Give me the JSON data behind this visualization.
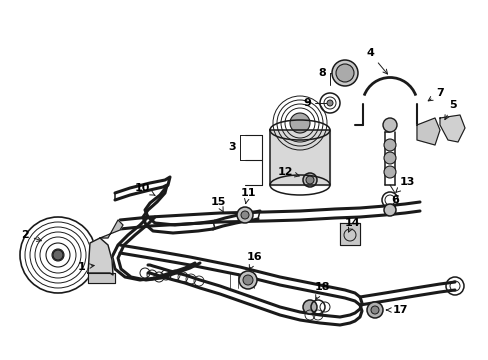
{
  "background_color": "#ffffff",
  "line_color": "#1a1a1a",
  "text_color": "#000000",
  "figsize": [
    4.89,
    3.6
  ],
  "dpi": 100,
  "arrow_lw": 0.7,
  "label_fs": 8.0,
  "parts_lw": 1.1,
  "hose_lw": 2.2,
  "thin_lw": 0.8
}
